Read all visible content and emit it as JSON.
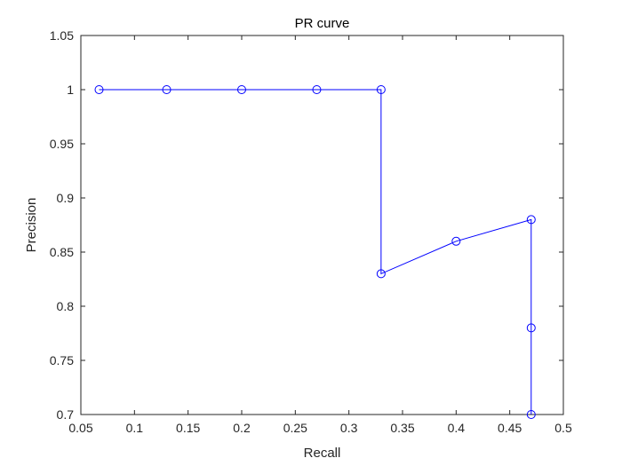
{
  "chart_data": {
    "type": "line",
    "title": "PR curve",
    "xlabel": "Recall",
    "ylabel": "Precision",
    "xlim": [
      0.05,
      0.5
    ],
    "ylim": [
      0.7,
      1.05
    ],
    "xticks": [
      "0.05",
      "0.1",
      "0.15",
      "0.2",
      "0.25",
      "0.3",
      "0.35",
      "0.4",
      "0.45",
      "0.5"
    ],
    "yticks": [
      "0.7",
      "0.75",
      "0.8",
      "0.85",
      "0.9",
      "0.95",
      "1",
      "1.05"
    ],
    "grid": false,
    "series": [
      {
        "color": "#0000ff",
        "marker": "circle",
        "x": [
          0.067,
          0.13,
          0.2,
          0.27,
          0.33,
          0.33,
          0.4,
          0.47,
          0.47,
          0.47
        ],
        "y": [
          1.0,
          1.0,
          1.0,
          1.0,
          1.0,
          0.83,
          0.86,
          0.88,
          0.78,
          0.7
        ]
      }
    ]
  }
}
